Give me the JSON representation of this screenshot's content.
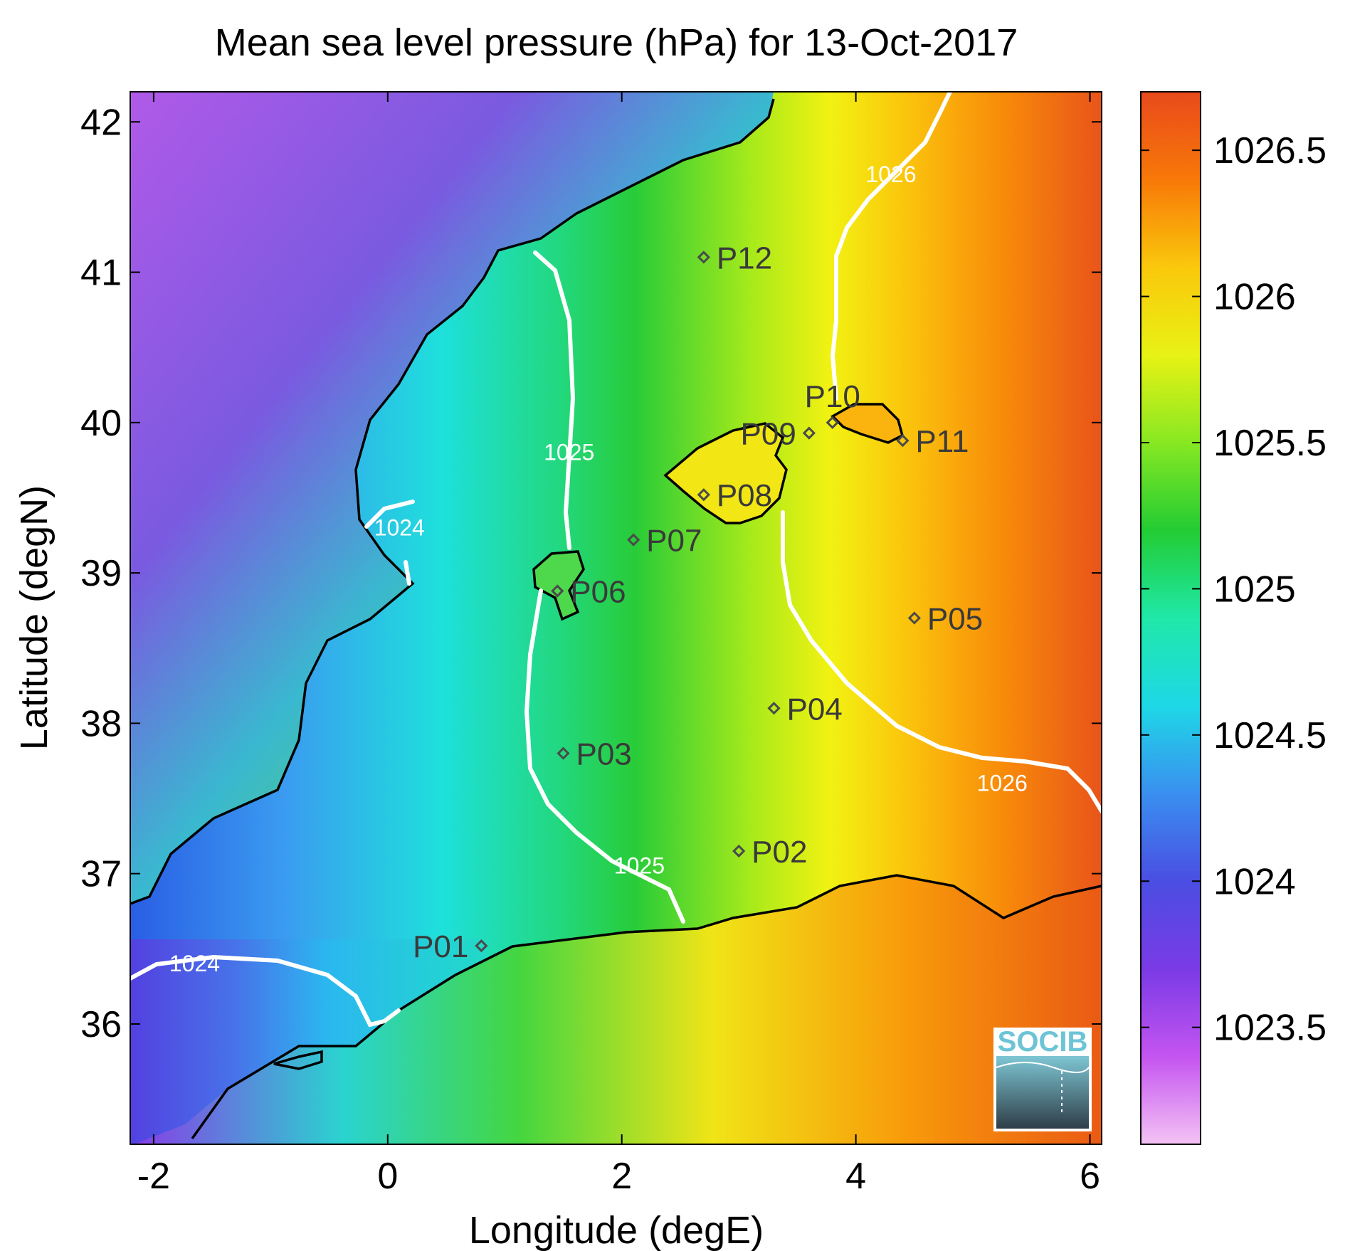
{
  "title": "Mean sea level pressure (hPa) for 13-Oct-2017",
  "x_axis": {
    "label": "Longitude (degE)",
    "range": [
      -2.2,
      6.1
    ],
    "ticks": [
      {
        "value": -2,
        "label": "-2"
      },
      {
        "value": 0,
        "label": "0"
      },
      {
        "value": 2,
        "label": "2"
      },
      {
        "value": 4,
        "label": "4"
      },
      {
        "value": 6,
        "label": "6"
      }
    ]
  },
  "y_axis": {
    "label": "Latitude (degN)",
    "range": [
      35.2,
      42.2
    ],
    "ticks": [
      {
        "value": 36,
        "label": "36"
      },
      {
        "value": 37,
        "label": "37"
      },
      {
        "value": 38,
        "label": "38"
      },
      {
        "value": 39,
        "label": "39"
      },
      {
        "value": 40,
        "label": "40"
      },
      {
        "value": 41,
        "label": "41"
      },
      {
        "value": 42,
        "label": "42"
      }
    ]
  },
  "colorbar": {
    "range": [
      1023.1,
      1026.7
    ],
    "ticks": [
      {
        "value": 1023.5,
        "label": "1023.5"
      },
      {
        "value": 1024,
        "label": "1024"
      },
      {
        "value": 1024.5,
        "label": "1024.5"
      },
      {
        "value": 1025,
        "label": "1025"
      },
      {
        "value": 1025.5,
        "label": "1025.5"
      },
      {
        "value": 1026,
        "label": "1026"
      },
      {
        "value": 1026.5,
        "label": "1026.5"
      }
    ],
    "colors": [
      "#f4c2f4",
      "#c455f0",
      "#7a3ae6",
      "#4a4ee2",
      "#3a8ff0",
      "#1ed8e6",
      "#1fe8a8",
      "#22cc33",
      "#88e822",
      "#e8f214",
      "#fac80c",
      "#f87808",
      "#e84a1c"
    ]
  },
  "stations": [
    {
      "label": "P01",
      "lon": 0.8,
      "lat": 36.52,
      "label_side": "left"
    },
    {
      "label": "P02",
      "lon": 3.0,
      "lat": 37.15,
      "label_side": "right"
    },
    {
      "label": "P03",
      "lon": 1.5,
      "lat": 37.8,
      "label_side": "right"
    },
    {
      "label": "P04",
      "lon": 3.3,
      "lat": 38.1,
      "label_side": "right"
    },
    {
      "label": "P05",
      "lon": 4.5,
      "lat": 38.7,
      "label_side": "right"
    },
    {
      "label": "P06",
      "lon": 1.45,
      "lat": 38.88,
      "label_side": "right"
    },
    {
      "label": "P07",
      "lon": 2.1,
      "lat": 39.22,
      "label_side": "right"
    },
    {
      "label": "P08",
      "lon": 2.7,
      "lat": 39.52,
      "label_side": "right"
    },
    {
      "label": "P09",
      "lon": 3.6,
      "lat": 39.93,
      "label_side": "left"
    },
    {
      "label": "P10",
      "lon": 3.8,
      "lat": 40.0,
      "label_side": "top"
    },
    {
      "label": "P11",
      "lon": 4.4,
      "lat": 39.88,
      "label_side": "right"
    },
    {
      "label": "P12",
      "lon": 2.7,
      "lat": 41.1,
      "label_side": "right"
    }
  ],
  "contour_labels": [
    {
      "text": "1024",
      "lon": 0.1,
      "lat": 39.25
    },
    {
      "text": "1025",
      "lon": 1.55,
      "lat": 39.75
    },
    {
      "text": "1026",
      "lon": 4.3,
      "lat": 41.6
    },
    {
      "text": "1026",
      "lon": 5.25,
      "lat": 37.55
    },
    {
      "text": "1025",
      "lon": 2.15,
      "lat": 37.0
    },
    {
      "text": "1024",
      "lon": -1.65,
      "lat": 36.35
    }
  ],
  "logo": {
    "text": "SOCIB"
  }
}
